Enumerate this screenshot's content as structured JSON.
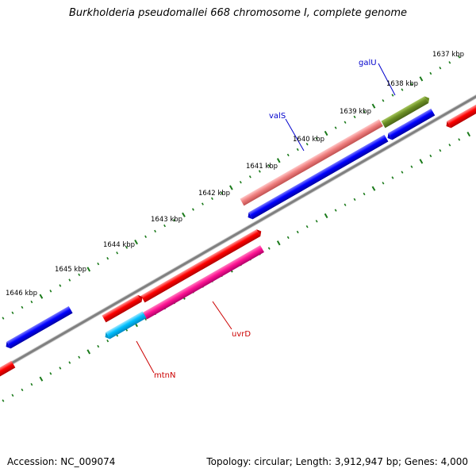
{
  "header": {
    "title": "Burkholderia pseudomallei 668 chromosome I, complete genome"
  },
  "footer": {
    "accession": "Accession: NC_009074",
    "stats": "Topology: circular; Length: 3,912,947 bp; Genes: 4,000"
  },
  "map": {
    "backbone_color": "#808080",
    "tick_color": "#1a7a1a",
    "scale_labels": [
      "1637 kbp",
      "1638 kbp",
      "1639 kbp",
      "1640 kbp",
      "1641 kbp",
      "1642 kbp",
      "1643 kbp",
      "1644 kbp",
      "1645 kbp",
      "1646 kbp"
    ],
    "gene_labels": [
      {
        "name": "galU",
        "color": "#0000cc"
      },
      {
        "name": "valS",
        "color": "#0000cc"
      },
      {
        "name": "uvrD",
        "color": "#cc0000"
      },
      {
        "name": "mtnN",
        "color": "#cc0000"
      }
    ],
    "gene_colors": {
      "red": "#ff0000",
      "blue": "#0000ff",
      "salmon": "#f08080",
      "olive": "#6b8e23",
      "magenta": "#ff1493",
      "cyan": "#00bfff"
    }
  }
}
